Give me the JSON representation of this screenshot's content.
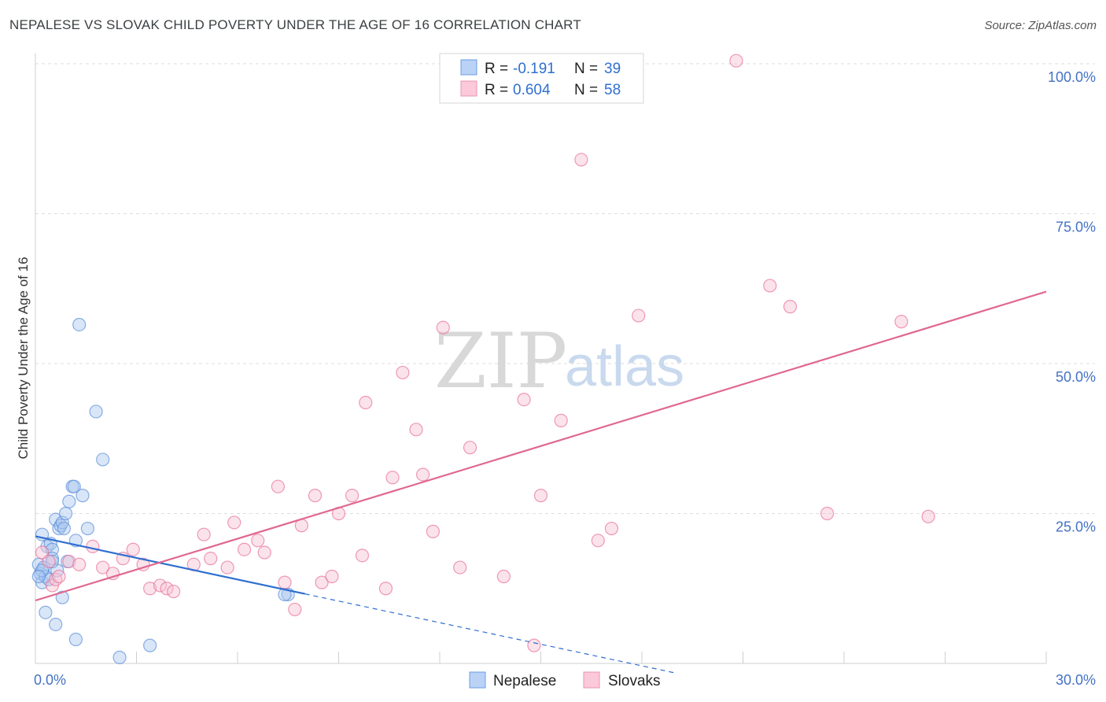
{
  "title": "NEPALESE VS SLOVAK CHILD POVERTY UNDER THE AGE OF 16 CORRELATION CHART",
  "source": "Source: ZipAtlas.com",
  "watermark": {
    "zip": "ZIP",
    "atlas": "atlas"
  },
  "chart_data": {
    "type": "scatter",
    "title": "NEPALESE VS SLOVAK CHILD POVERTY UNDER THE AGE OF 16 CORRELATION CHART",
    "xlabel": "",
    "ylabel": "Child Poverty Under the Age of 16",
    "xlim": [
      0,
      30
    ],
    "ylim": [
      0,
      100
    ],
    "x_tick_labels": [
      {
        "value": 0,
        "label": "0.0%"
      },
      {
        "value": 30,
        "label": "30.0%"
      }
    ],
    "y_tick_labels": [
      {
        "value": 25,
        "label": "25.0%"
      },
      {
        "value": 50,
        "label": "50.0%"
      },
      {
        "value": 75,
        "label": "75.0%"
      },
      {
        "value": 100,
        "label": "100.0%"
      }
    ],
    "legend": {
      "rows": [
        {
          "r_label": "R =",
          "r_value": "-0.191",
          "n_label": "N =",
          "n_value": "39"
        },
        {
          "r_label": "R =",
          "r_value": "0.604",
          "n_label": "N =",
          "n_value": "58"
        }
      ]
    },
    "series": [
      {
        "name": "Nepalese",
        "color": "#5b8fd9",
        "fill": "#aac8f0",
        "trend": {
          "x0": 0,
          "y0": 21.2,
          "x1": 8,
          "y1": 11.6,
          "dash_to_x": 19,
          "dash_to_y": -1.6
        },
        "points": [
          [
            0.1,
            16.5
          ],
          [
            0.15,
            15
          ],
          [
            0.2,
            13.5
          ],
          [
            0.2,
            21.5
          ],
          [
            0.25,
            16
          ],
          [
            0.3,
            14.5
          ],
          [
            0.35,
            19.5
          ],
          [
            0.4,
            14
          ],
          [
            0.45,
            20
          ],
          [
            0.5,
            19
          ],
          [
            0.5,
            17.5
          ],
          [
            0.6,
            24
          ],
          [
            0.65,
            15.5
          ],
          [
            0.7,
            22.5
          ],
          [
            0.75,
            23
          ],
          [
            0.8,
            23.5
          ],
          [
            0.85,
            22.5
          ],
          [
            0.9,
            25
          ],
          [
            0.95,
            17
          ],
          [
            1.0,
            27
          ],
          [
            1.1,
            29.5
          ],
          [
            1.15,
            29.5
          ],
          [
            1.2,
            20.5
          ],
          [
            1.4,
            28
          ],
          [
            1.55,
            22.5
          ],
          [
            1.3,
            56.5
          ],
          [
            1.8,
            42
          ],
          [
            2.0,
            34
          ],
          [
            0.3,
            8.5
          ],
          [
            0.6,
            6.5
          ],
          [
            0.8,
            11
          ],
          [
            1.2,
            4
          ],
          [
            3.4,
            3
          ],
          [
            2.5,
            1
          ],
          [
            7.5,
            11.5
          ],
          [
            7.4,
            11.5
          ],
          [
            0.2,
            15.5
          ],
          [
            0.5,
            17
          ],
          [
            0.1,
            14.5
          ]
        ]
      },
      {
        "name": "Slovaks",
        "color": "#e8709a",
        "fill": "#f7c0d2",
        "trend": {
          "x0": 0,
          "y0": 10.5,
          "x1": 30,
          "y1": 62
        },
        "points": [
          [
            0.2,
            18.5
          ],
          [
            0.4,
            17
          ],
          [
            0.5,
            13
          ],
          [
            0.6,
            14
          ],
          [
            0.7,
            14.5
          ],
          [
            1.0,
            17
          ],
          [
            1.3,
            16.5
          ],
          [
            1.7,
            19.5
          ],
          [
            2.0,
            16
          ],
          [
            2.3,
            15
          ],
          [
            2.6,
            17.5
          ],
          [
            2.9,
            19
          ],
          [
            3.2,
            16.5
          ],
          [
            3.4,
            12.5
          ],
          [
            3.7,
            13
          ],
          [
            3.9,
            12.5
          ],
          [
            4.1,
            12
          ],
          [
            4.7,
            16.5
          ],
          [
            5.0,
            21.5
          ],
          [
            5.2,
            17.5
          ],
          [
            5.7,
            16
          ],
          [
            5.9,
            23.5
          ],
          [
            6.2,
            19
          ],
          [
            6.6,
            20.5
          ],
          [
            6.8,
            18.5
          ],
          [
            7.2,
            29.5
          ],
          [
            7.4,
            13.5
          ],
          [
            7.7,
            9
          ],
          [
            7.9,
            23
          ],
          [
            8.3,
            28
          ],
          [
            8.5,
            13.5
          ],
          [
            8.8,
            14.5
          ],
          [
            9.0,
            25
          ],
          [
            9.4,
            28
          ],
          [
            9.7,
            18
          ],
          [
            9.8,
            43.5
          ],
          [
            10.4,
            12.5
          ],
          [
            10.6,
            31
          ],
          [
            10.9,
            48.5
          ],
          [
            11.3,
            39
          ],
          [
            11.5,
            31.5
          ],
          [
            11.8,
            22
          ],
          [
            12.1,
            56
          ],
          [
            12.6,
            16
          ],
          [
            12.9,
            36
          ],
          [
            13.9,
            14.5
          ],
          [
            14.5,
            44
          ],
          [
            14.8,
            3
          ],
          [
            15.0,
            28
          ],
          [
            15.6,
            40.5
          ],
          [
            16.2,
            84
          ],
          [
            16.7,
            20.5
          ],
          [
            17.1,
            22.5
          ],
          [
            17.9,
            58
          ],
          [
            20.8,
            100.5
          ],
          [
            21.8,
            63
          ],
          [
            22.4,
            59.5
          ],
          [
            25.7,
            57
          ]
        ]
      }
    ]
  },
  "bottom_legend": [
    {
      "label": "Nepalese"
    },
    {
      "label": "Slovaks"
    }
  ],
  "extra_slovaks": [
    [
      23.5,
      25
    ],
    [
      26.5,
      24.5
    ]
  ]
}
